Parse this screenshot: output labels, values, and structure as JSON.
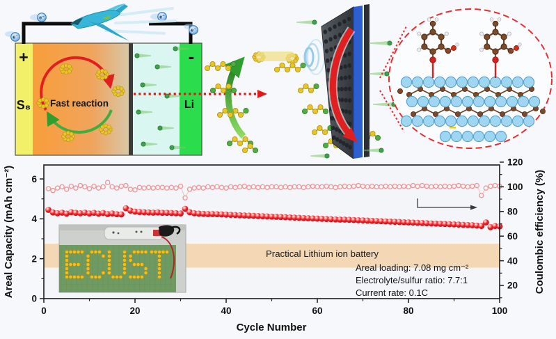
{
  "schematic": {
    "plus_sign": "+",
    "minus_sign": "-",
    "cathode_label": "S₈",
    "anode_label": "Li",
    "reaction_label": "Fast reaction",
    "electron_label": "e⁻",
    "colors": {
      "cathode_strip": "#f2ef68",
      "cathode_gradient_start": "#f89e3b",
      "cathode_gradient_end": "#d8c7a7",
      "separator": "#3b3b3b",
      "electrolyte": "#d9f7f0",
      "anode": "#2bdd4d",
      "callout_dash": "#e43030"
    }
  },
  "chart_data": {
    "type": "scatter",
    "xlabel": "Cycle Number",
    "ylabel_left": "Areal Capacity (mAh cm⁻²)",
    "ylabel_right": "Coulombic efficiency (%)",
    "xlim": [
      0,
      100
    ],
    "ylim_left": [
      0,
      6.7
    ],
    "ylim_right": [
      9.3,
      117.7
    ],
    "x_ticks": [
      0,
      20,
      40,
      60,
      80,
      100
    ],
    "y_left_ticks": [
      0,
      2,
      4,
      6
    ],
    "y_right_ticks": [
      20,
      40,
      60,
      80,
      100,
      120
    ],
    "grid": false,
    "series": [
      {
        "name": "Areal capacity",
        "axis": "left",
        "style": "filled",
        "color": "#e8151d",
        "values": [
          4.45,
          4.32,
          4.28,
          4.31,
          4.26,
          4.33,
          4.3,
          4.28,
          4.31,
          4.27,
          4.3,
          4.26,
          4.29,
          4.24,
          4.27,
          4.23,
          4.22,
          4.53,
          4.41,
          4.36,
          4.34,
          4.33,
          4.32,
          4.31,
          4.32,
          4.3,
          4.3,
          4.29,
          4.28,
          4.27,
          4.5,
          4.33,
          4.28,
          4.26,
          4.25,
          4.24,
          4.24,
          4.23,
          4.22,
          4.21,
          4.2,
          4.19,
          4.18,
          4.17,
          4.16,
          4.15,
          4.14,
          4.13,
          4.12,
          4.11,
          4.1,
          4.09,
          4.08,
          4.07,
          4.06,
          4.05,
          4.04,
          4.03,
          4.02,
          4.01,
          4.0,
          3.99,
          3.98,
          3.97,
          3.96,
          3.96,
          3.95,
          3.94,
          3.93,
          3.92,
          3.91,
          3.9,
          3.89,
          3.88,
          3.87,
          3.86,
          3.85,
          3.84,
          3.83,
          3.82,
          3.81,
          3.8,
          3.79,
          3.78,
          3.77,
          3.76,
          3.75,
          3.74,
          3.73,
          3.72,
          3.71,
          3.7,
          3.69,
          3.68,
          3.66,
          3.64,
          3.82,
          3.58,
          3.64,
          3.62
        ]
      },
      {
        "name": "Coulombic efficiency",
        "axis": "right",
        "style": "open",
        "color": "#f09494",
        "values": [
          98.5,
          97.0,
          99.0,
          100.0,
          98.0,
          100.5,
          99.0,
          101.0,
          100.0,
          98.5,
          100.5,
          99.0,
          100.0,
          103.5,
          100.0,
          99.0,
          100.5,
          101.0,
          98.0,
          97.5,
          99.5,
          99.0,
          99.5,
          99.0,
          99.5,
          99.5,
          99.0,
          99.5,
          99.0,
          100.5,
          91.0,
          98.0,
          99.0,
          99.5,
          99.0,
          100.0,
          99.5,
          100.0,
          99.5,
          99.0,
          100.0,
          99.5,
          100.0,
          100.5,
          99.5,
          100.0,
          99.5,
          100.0,
          99.5,
          100.0,
          100.0,
          99.5,
          100.0,
          99.5,
          100.0,
          100.0,
          99.5,
          100.0,
          100.5,
          100.0,
          100.0,
          100.5,
          100.0,
          99.5,
          100.0,
          100.5,
          100.0,
          100.5,
          101.0,
          100.5,
          100.0,
          100.5,
          100.0,
          100.0,
          100.5,
          100.0,
          100.5,
          100.0,
          100.5,
          100.0,
          101.0,
          100.5,
          101.0,
          100.5,
          100.0,
          100.5,
          100.0,
          100.5,
          100.0,
          100.5,
          101.0,
          100.5,
          100.0,
          100.5,
          101.0,
          93.0,
          99.0,
          100.5,
          101.0,
          100.5
        ]
      }
    ],
    "band": {
      "label": "Practical Lithium ion battery",
      "y_from": 1.55,
      "y_to": 2.75,
      "color": "#f4d8b5"
    },
    "annotations": [
      "Areal loading: 7.08 mg cm⁻²",
      "Electrolyte/sulfur ratio: 7.7:1",
      "Current rate: 0.1C"
    ],
    "inset_text": "ECUST"
  }
}
